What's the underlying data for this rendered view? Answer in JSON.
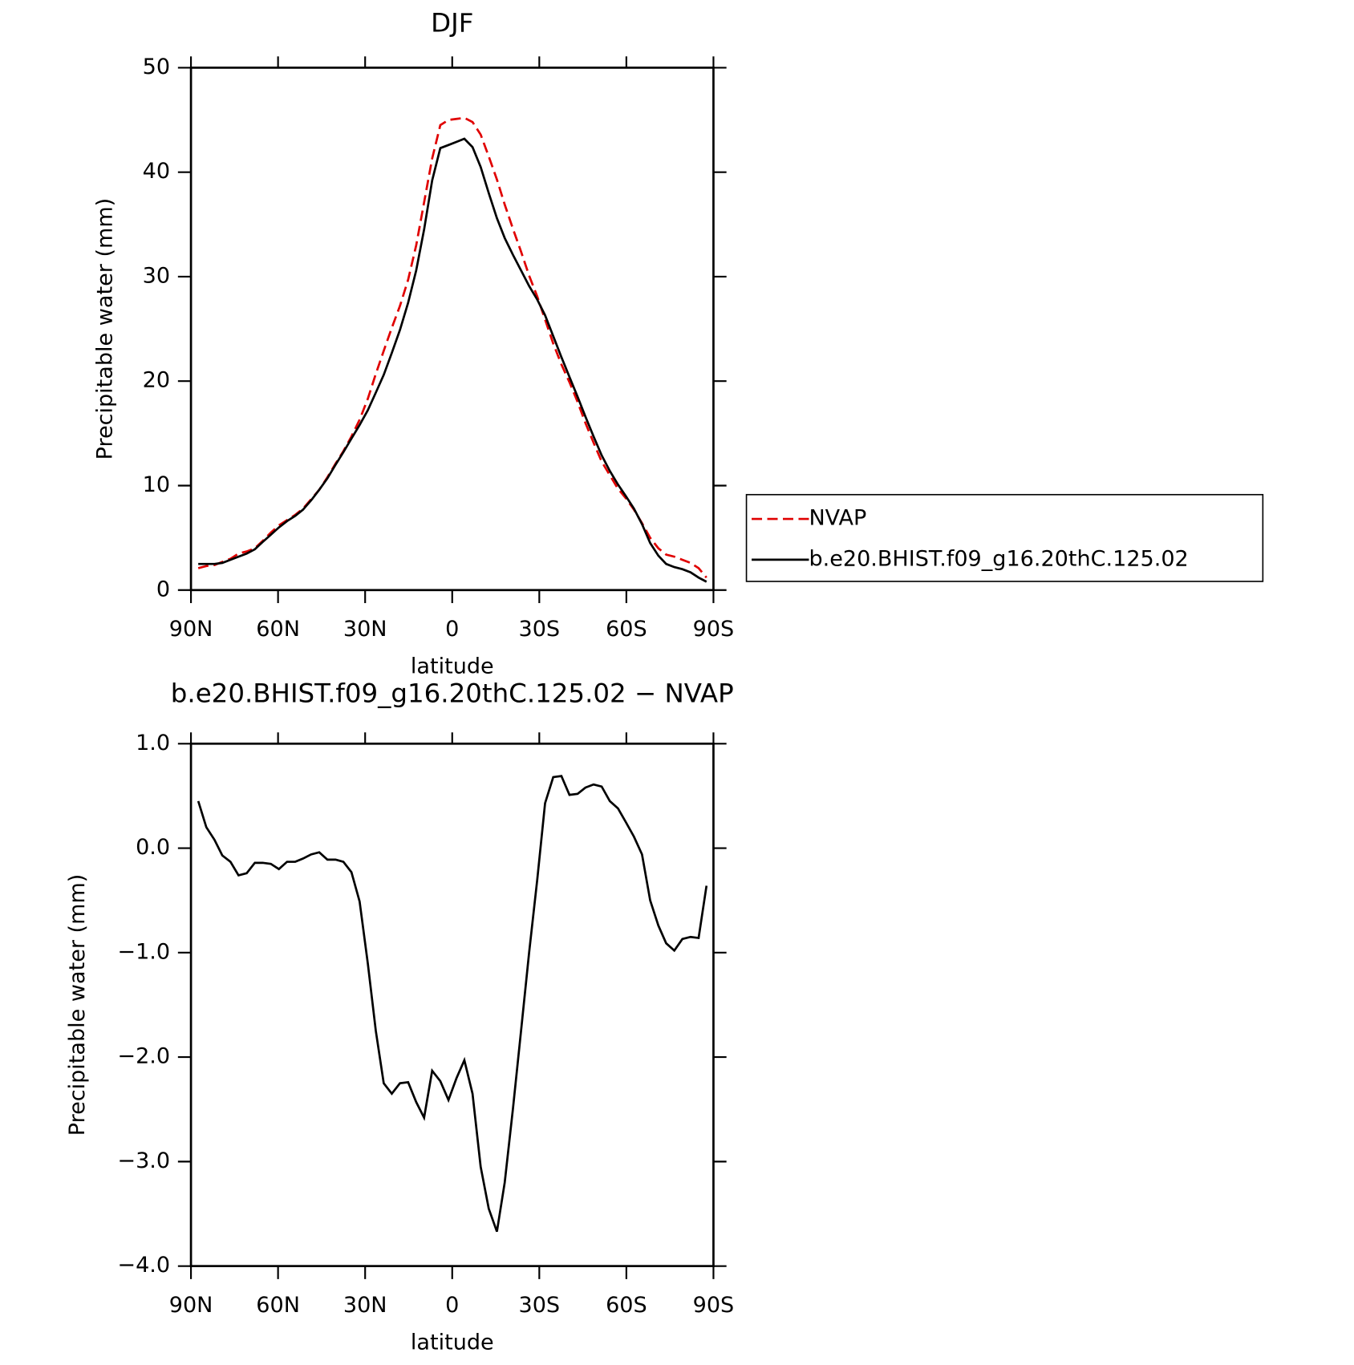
{
  "chart_data": [
    {
      "type": "line",
      "title": "DJF",
      "xlabel": "latitude",
      "ylabel": "Precipitable water (mm)",
      "x": [
        87.5,
        84.7,
        81.9,
        79.2,
        76.4,
        73.6,
        70.8,
        68.0,
        65.3,
        62.5,
        59.7,
        56.9,
        54.1,
        51.4,
        48.6,
        45.8,
        43.0,
        40.2,
        37.5,
        34.7,
        31.9,
        29.1,
        26.3,
        23.6,
        20.8,
        18.0,
        15.2,
        12.4,
        9.7,
        6.9,
        4.1,
        1.3,
        -1.5,
        -4.2,
        -7.0,
        -9.8,
        -12.6,
        -15.4,
        -18.1,
        -20.9,
        -23.7,
        -26.5,
        -29.3,
        -32.0,
        -34.8,
        -37.6,
        -40.4,
        -43.2,
        -45.9,
        -48.7,
        -51.5,
        -54.3,
        -57.1,
        -59.8,
        -62.6,
        -65.4,
        -68.2,
        -71.0,
        -73.7,
        -76.5,
        -79.3,
        -82.1,
        -84.9,
        -87.6
      ],
      "series": [
        {
          "name": "NVAP",
          "color": "#e00000",
          "dashed": true,
          "values": [
            2.1,
            2.3,
            2.4,
            2.7,
            3.0,
            3.5,
            3.7,
            4.0,
            4.7,
            5.5,
            6.2,
            6.7,
            7.2,
            7.8,
            8.7,
            9.6,
            10.8,
            12.1,
            13.3,
            14.7,
            16.3,
            18.3,
            20.7,
            22.9,
            25.1,
            27.2,
            29.7,
            33.0,
            37.1,
            41.3,
            44.5,
            45.0,
            45.1,
            45.2,
            44.8,
            43.6,
            41.5,
            39.3,
            36.9,
            34.6,
            32.4,
            30.1,
            28.1,
            25.9,
            23.6,
            21.6,
            19.9,
            18.0,
            16.0,
            14.1,
            12.3,
            11.0,
            9.7,
            8.8,
            7.7,
            6.4,
            5.0,
            4.0,
            3.4,
            3.2,
            2.9,
            2.6,
            2.1,
            1.2
          ]
        },
        {
          "name": "b.e20.BHIST.f09_g16.20thC.125.02",
          "color": "#000000",
          "dashed": false,
          "values": [
            2.5,
            2.5,
            2.5,
            2.6,
            2.9,
            3.2,
            3.5,
            3.9,
            4.6,
            5.3,
            6.0,
            6.6,
            7.1,
            7.7,
            8.6,
            9.6,
            10.7,
            12.0,
            13.2,
            14.5,
            15.8,
            17.2,
            18.9,
            20.6,
            22.7,
            24.9,
            27.5,
            30.6,
            34.5,
            39.2,
            42.3,
            42.6,
            42.9,
            43.2,
            42.4,
            40.5,
            38.0,
            35.6,
            33.7,
            32.1,
            30.6,
            29.1,
            27.8,
            26.3,
            24.3,
            22.3,
            20.4,
            18.5,
            16.6,
            14.7,
            12.9,
            11.4,
            10.1,
            9.0,
            7.8,
            6.3,
            4.5,
            3.3,
            2.5,
            2.2,
            2.0,
            1.7,
            1.2,
            0.8
          ]
        }
      ],
      "xlim": [
        90,
        -90
      ],
      "xticks": [
        {
          "value": 90,
          "label": "90N"
        },
        {
          "value": 60,
          "label": "60N"
        },
        {
          "value": 30,
          "label": "30N"
        },
        0,
        {
          "value": -30,
          "label": "30S"
        },
        {
          "value": -60,
          "label": "60S"
        },
        {
          "value": -90,
          "label": "90S"
        }
      ],
      "ylim": [
        0,
        50
      ],
      "yticks": [
        0,
        10,
        20,
        30,
        40,
        50
      ],
      "legend": "right"
    },
    {
      "type": "line",
      "title": "b.e20.BHIST.f09_g16.20thC.125.02 − NVAP",
      "xlabel": "latitude",
      "ylabel": "Precipitable water (mm)",
      "x": [
        87.5,
        84.7,
        81.9,
        79.2,
        76.4,
        73.6,
        70.8,
        68.0,
        65.3,
        62.5,
        59.7,
        56.9,
        54.1,
        51.4,
        48.6,
        45.8,
        43.0,
        40.2,
        37.5,
        34.7,
        31.9,
        29.1,
        26.3,
        23.6,
        20.8,
        18.0,
        15.2,
        12.4,
        9.7,
        6.9,
        4.1,
        1.3,
        -1.5,
        -4.2,
        -7.0,
        -9.8,
        -12.6,
        -15.4,
        -18.1,
        -20.9,
        -23.7,
        -26.5,
        -29.3,
        -32.0,
        -34.8,
        -37.6,
        -40.4,
        -43.2,
        -45.9,
        -48.7,
        -51.5,
        -54.3,
        -57.1,
        -59.8,
        -62.6,
        -65.4,
        -68.2,
        -71.0,
        -73.7,
        -76.5,
        -79.3,
        -82.1,
        -84.9,
        -87.6
      ],
      "series": [
        {
          "color": "#000000",
          "dashed": false,
          "values": [
            0.45,
            0.2,
            0.08,
            -0.07,
            -0.13,
            -0.26,
            -0.24,
            -0.14,
            -0.14,
            -0.15,
            -0.2,
            -0.13,
            -0.13,
            -0.1,
            -0.06,
            -0.04,
            -0.11,
            -0.11,
            -0.13,
            -0.23,
            -0.51,
            -1.1,
            -1.75,
            -2.25,
            -2.35,
            -2.25,
            -2.24,
            -2.43,
            -2.58,
            -2.13,
            -2.23,
            -2.41,
            -2.2,
            -2.03,
            -2.35,
            -3.05,
            -3.45,
            -3.67,
            -3.2,
            -2.5,
            -1.75,
            -1.0,
            -0.3,
            0.43,
            0.68,
            0.69,
            0.51,
            0.52,
            0.58,
            0.61,
            0.59,
            0.45,
            0.38,
            0.25,
            0.11,
            -0.06,
            -0.5,
            -0.74,
            -0.91,
            -0.98,
            -0.87,
            -0.85,
            -0.86,
            -0.36
          ]
        }
      ],
      "xlim": [
        90,
        -90
      ],
      "xticks": [
        {
          "value": 90,
          "label": "90N"
        },
        {
          "value": 60,
          "label": "60N"
        },
        {
          "value": 30,
          "label": "30N"
        },
        0,
        {
          "value": -30,
          "label": "30S"
        },
        {
          "value": -60,
          "label": "60S"
        },
        {
          "value": -90,
          "label": "90S"
        }
      ],
      "ylim": [
        -4,
        1
      ],
      "yticks": [
        {
          "value": 1,
          "label": "1.0"
        },
        {
          "value": 0,
          "label": "0.0"
        },
        {
          "value": -1,
          "label": "−1.0"
        },
        {
          "value": -2,
          "label": "−2.0"
        },
        {
          "value": -3,
          "label": "−3.0"
        },
        {
          "value": -4,
          "label": "−4.0"
        }
      ]
    }
  ]
}
